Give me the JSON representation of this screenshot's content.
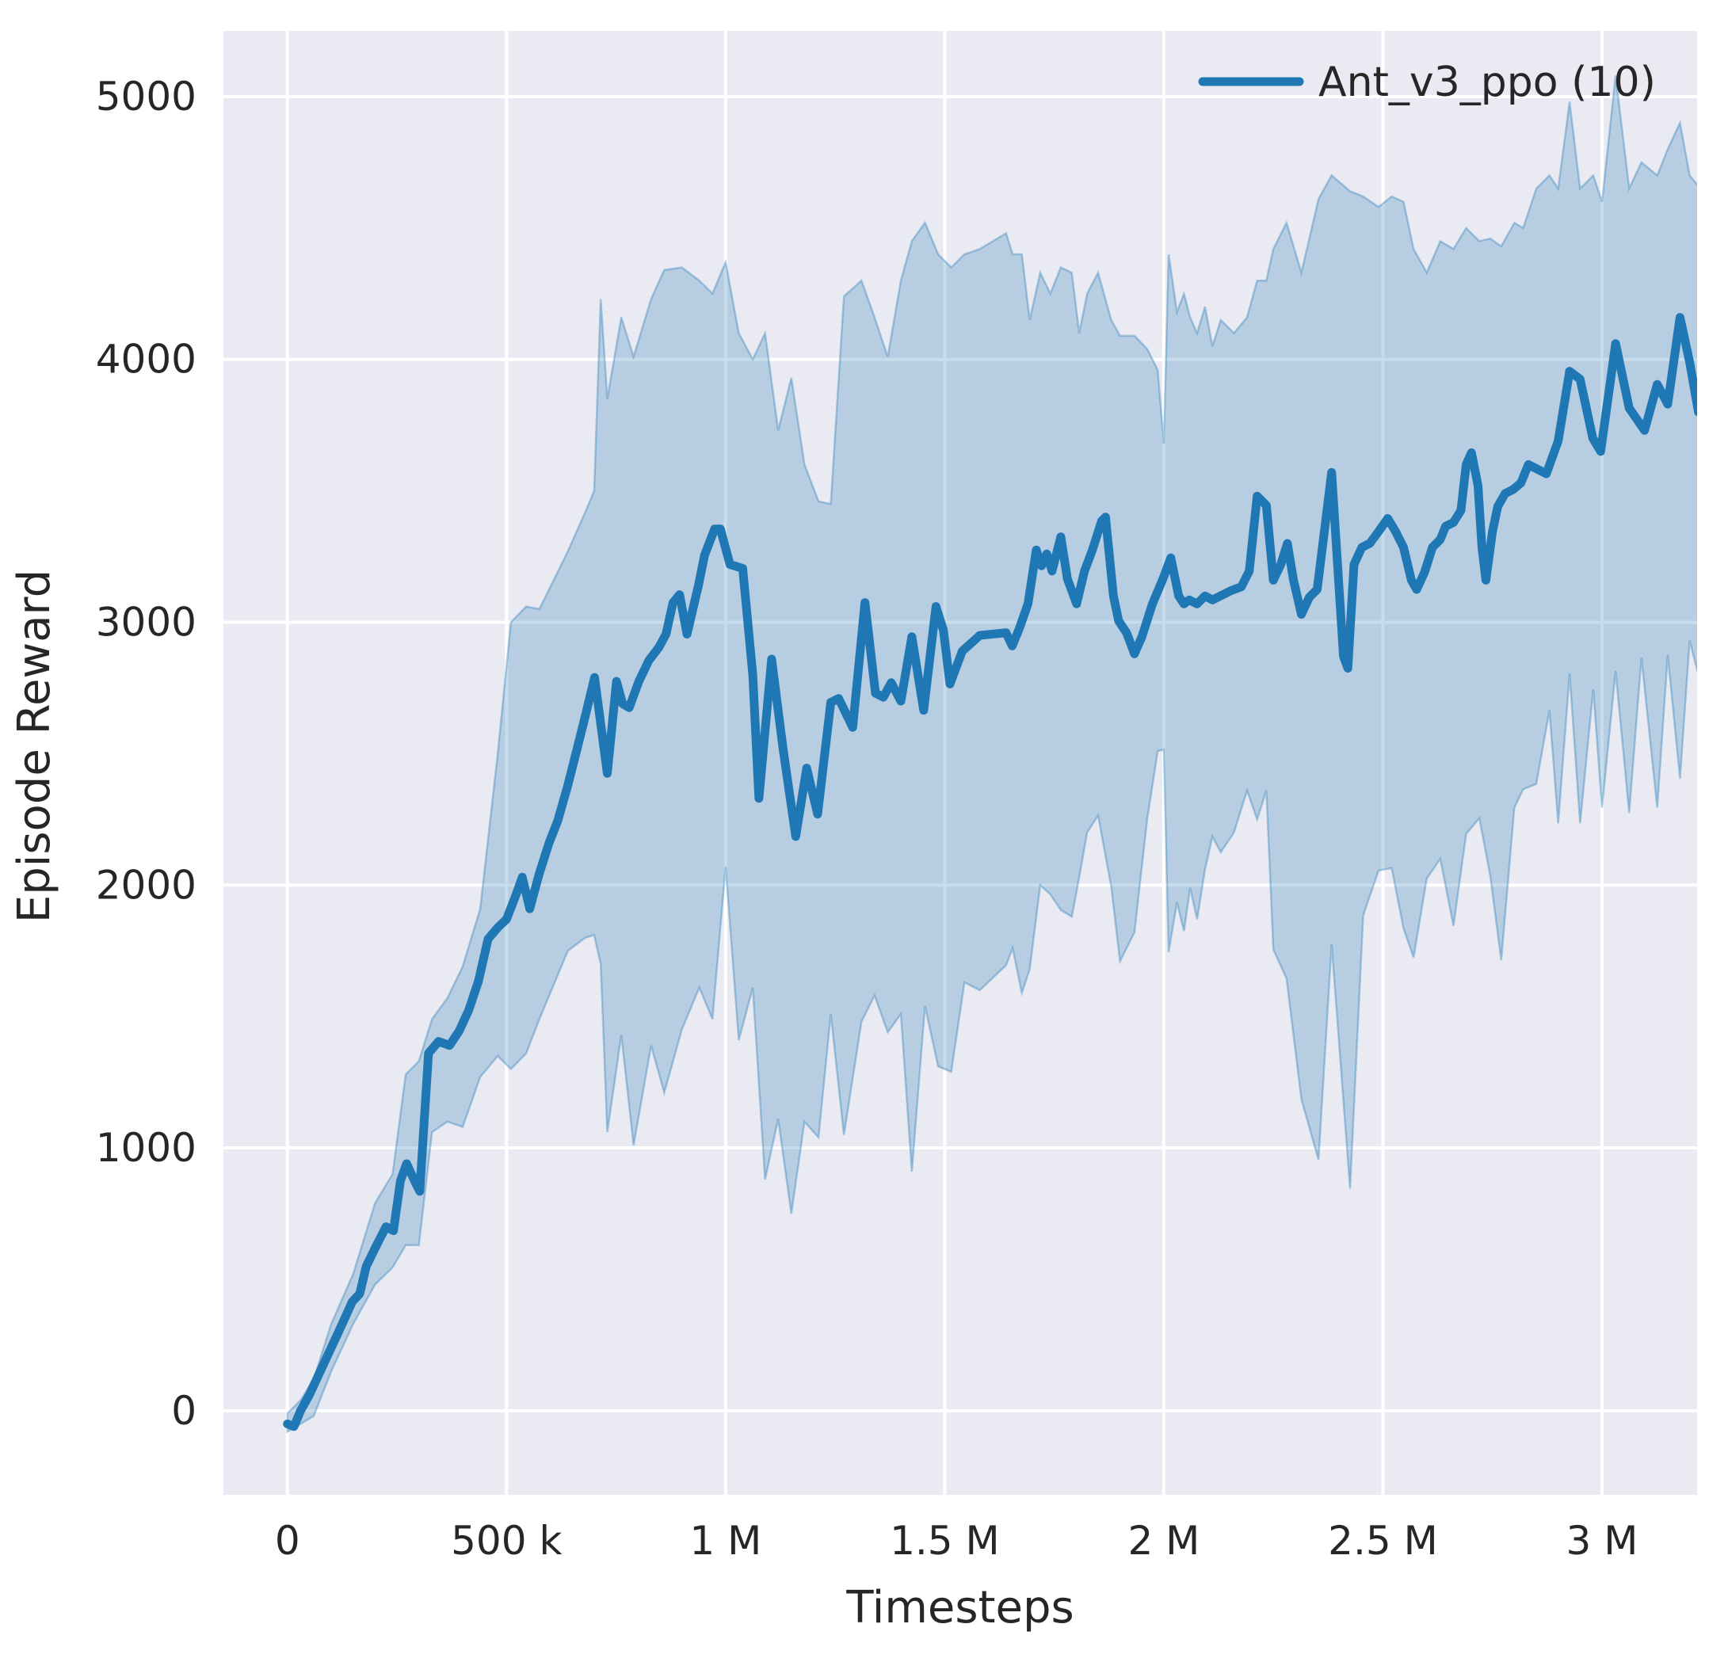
{
  "chart_data": {
    "type": "line",
    "title": "",
    "xlabel": "Timesteps",
    "ylabel": "Episode Reward",
    "grid": true,
    "legend_position": "upper right",
    "legend": [
      {
        "label": "Ant_v3_ppo (10)",
        "color": "#1f77b4"
      }
    ],
    "colors": {
      "figure_background": "#ffffff",
      "axes_background": "#eaeaf2",
      "gridline": "#ffffff",
      "line": "#1f77b4",
      "band_fill": "#1f77b4",
      "band_opacity": 0.25,
      "text": "#262626"
    },
    "xlim": [
      -146000,
      3217000
    ],
    "ylim": [
      -320,
      5250
    ],
    "x_ticks": [
      {
        "value": 0,
        "label": "0"
      },
      {
        "value": 500000,
        "label": "500 k"
      },
      {
        "value": 1000000,
        "label": "1 M"
      },
      {
        "value": 1500000,
        "label": "1.5 M"
      },
      {
        "value": 2000000,
        "label": "2 M"
      },
      {
        "value": 2500000,
        "label": "2.5 M"
      },
      {
        "value": 3000000,
        "label": "3 M"
      }
    ],
    "y_ticks": [
      {
        "value": 0,
        "label": "0"
      },
      {
        "value": 1000,
        "label": "1000"
      },
      {
        "value": 2000,
        "label": "2000"
      },
      {
        "value": 3000,
        "label": "3000"
      },
      {
        "value": 4000,
        "label": "4000"
      },
      {
        "value": 5000,
        "label": "5000"
      }
    ],
    "series": [
      {
        "name": "Ant_v3_ppo (10)",
        "color": "#1f77b4",
        "linewidth": 11,
        "points": [
          [
            0,
            -50
          ],
          [
            15000,
            -60
          ],
          [
            30000,
            0
          ],
          [
            50000,
            60
          ],
          [
            75000,
            150
          ],
          [
            100000,
            240
          ],
          [
            125000,
            330
          ],
          [
            148000,
            415
          ],
          [
            165000,
            445
          ],
          [
            180000,
            550
          ],
          [
            205000,
            635
          ],
          [
            225000,
            700
          ],
          [
            242000,
            685
          ],
          [
            258000,
            875
          ],
          [
            272000,
            940
          ],
          [
            290000,
            875
          ],
          [
            302000,
            835
          ],
          [
            322000,
            1360
          ],
          [
            345000,
            1405
          ],
          [
            370000,
            1390
          ],
          [
            392000,
            1445
          ],
          [
            414000,
            1525
          ],
          [
            436000,
            1635
          ],
          [
            458000,
            1795
          ],
          [
            481000,
            1840
          ],
          [
            500000,
            1870
          ],
          [
            521000,
            1960
          ],
          [
            536000,
            2030
          ],
          [
            553000,
            1910
          ],
          [
            575000,
            2045
          ],
          [
            597000,
            2160
          ],
          [
            617000,
            2245
          ],
          [
            640000,
            2380
          ],
          [
            662000,
            2525
          ],
          [
            680000,
            2645
          ],
          [
            701000,
            2790
          ],
          [
            730000,
            2425
          ],
          [
            751000,
            2775
          ],
          [
            765000,
            2690
          ],
          [
            780000,
            2675
          ],
          [
            802000,
            2775
          ],
          [
            825000,
            2855
          ],
          [
            848000,
            2905
          ],
          [
            864000,
            2955
          ],
          [
            880000,
            3075
          ],
          [
            895000,
            3105
          ],
          [
            912000,
            2955
          ],
          [
            938000,
            3140
          ],
          [
            952000,
            3255
          ],
          [
            975000,
            3355
          ],
          [
            988000,
            3355
          ],
          [
            1010000,
            3220
          ],
          [
            1039000,
            3205
          ],
          [
            1062000,
            2800
          ],
          [
            1076000,
            2330
          ],
          [
            1105000,
            2860
          ],
          [
            1131000,
            2520
          ],
          [
            1160000,
            2185
          ],
          [
            1185000,
            2445
          ],
          [
            1210000,
            2270
          ],
          [
            1240000,
            2695
          ],
          [
            1258000,
            2710
          ],
          [
            1290000,
            2600
          ],
          [
            1318000,
            3075
          ],
          [
            1342000,
            2730
          ],
          [
            1360000,
            2715
          ],
          [
            1378000,
            2770
          ],
          [
            1400000,
            2700
          ],
          [
            1425000,
            2945
          ],
          [
            1452000,
            2665
          ],
          [
            1480000,
            3060
          ],
          [
            1497000,
            2970
          ],
          [
            1512000,
            2765
          ],
          [
            1540000,
            2890
          ],
          [
            1580000,
            2950
          ],
          [
            1640000,
            2960
          ],
          [
            1654000,
            2910
          ],
          [
            1670000,
            2975
          ],
          [
            1690000,
            3070
          ],
          [
            1709000,
            3275
          ],
          [
            1721000,
            3215
          ],
          [
            1733000,
            3260
          ],
          [
            1745000,
            3195
          ],
          [
            1765000,
            3325
          ],
          [
            1780000,
            3165
          ],
          [
            1801000,
            3070
          ],
          [
            1819000,
            3195
          ],
          [
            1837000,
            3275
          ],
          [
            1858000,
            3385
          ],
          [
            1867000,
            3400
          ],
          [
            1885000,
            3100
          ],
          [
            1897000,
            3005
          ],
          [
            1915000,
            2960
          ],
          [
            1933000,
            2880
          ],
          [
            1950000,
            2945
          ],
          [
            1974000,
            3070
          ],
          [
            1998000,
            3165
          ],
          [
            2016000,
            3245
          ],
          [
            2034000,
            3100
          ],
          [
            2046000,
            3070
          ],
          [
            2058000,
            3085
          ],
          [
            2076000,
            3070
          ],
          [
            2094000,
            3100
          ],
          [
            2111000,
            3085
          ],
          [
            2129000,
            3100
          ],
          [
            2153000,
            3120
          ],
          [
            2177000,
            3135
          ],
          [
            2195000,
            3195
          ],
          [
            2213000,
            3480
          ],
          [
            2234000,
            3445
          ],
          [
            2250000,
            3160
          ],
          [
            2267000,
            3220
          ],
          [
            2282000,
            3300
          ],
          [
            2296000,
            3160
          ],
          [
            2314000,
            3030
          ],
          [
            2332000,
            3095
          ],
          [
            2350000,
            3125
          ],
          [
            2383000,
            3570
          ],
          [
            2410000,
            2870
          ],
          [
            2420000,
            2825
          ],
          [
            2434000,
            3220
          ],
          [
            2452000,
            3285
          ],
          [
            2470000,
            3300
          ],
          [
            2490000,
            3345
          ],
          [
            2511000,
            3395
          ],
          [
            2529000,
            3345
          ],
          [
            2547000,
            3285
          ],
          [
            2565000,
            3160
          ],
          [
            2577000,
            3125
          ],
          [
            2595000,
            3190
          ],
          [
            2613000,
            3285
          ],
          [
            2631000,
            3315
          ],
          [
            2643000,
            3365
          ],
          [
            2661000,
            3380
          ],
          [
            2678000,
            3425
          ],
          [
            2690000,
            3600
          ],
          [
            2702000,
            3645
          ],
          [
            2717000,
            3520
          ],
          [
            2726000,
            3285
          ],
          [
            2735000,
            3160
          ],
          [
            2750000,
            3345
          ],
          [
            2762000,
            3440
          ],
          [
            2779000,
            3490
          ],
          [
            2797000,
            3505
          ],
          [
            2815000,
            3530
          ],
          [
            2832000,
            3600
          ],
          [
            2873000,
            3565
          ],
          [
            2900000,
            3690
          ],
          [
            2926000,
            3955
          ],
          [
            2950000,
            3925
          ],
          [
            2979000,
            3700
          ],
          [
            2997000,
            3650
          ],
          [
            3031000,
            4060
          ],
          [
            3062000,
            3815
          ],
          [
            3097000,
            3730
          ],
          [
            3126000,
            3905
          ],
          [
            3150000,
            3830
          ],
          [
            3178000,
            4160
          ],
          [
            3200000,
            3990
          ],
          [
            3220000,
            3800
          ]
        ]
      }
    ],
    "band": {
      "name": "std-band",
      "color": "#1f77b4",
      "opacity": 0.25,
      "points": [
        [
          0,
          -80,
          -10
        ],
        [
          30000,
          -50,
          40
        ],
        [
          60000,
          -20,
          120
        ],
        [
          100000,
          150,
          330
        ],
        [
          150000,
          330,
          520
        ],
        [
          200000,
          480,
          790
        ],
        [
          240000,
          545,
          900
        ],
        [
          270000,
          630,
          1280
        ],
        [
          300000,
          630,
          1330
        ],
        [
          330000,
          1060,
          1490
        ],
        [
          365000,
          1100,
          1570
        ],
        [
          400000,
          1080,
          1690
        ],
        [
          440000,
          1270,
          1910
        ],
        [
          480000,
          1350,
          2500
        ],
        [
          510000,
          1300,
          3000
        ],
        [
          545000,
          1360,
          3060
        ],
        [
          575000,
          1490,
          3050
        ],
        [
          640000,
          1750,
          3270
        ],
        [
          680000,
          1800,
          3420
        ],
        [
          700000,
          1810,
          3500
        ],
        [
          715000,
          1700,
          4230
        ],
        [
          730000,
          1060,
          3850
        ],
        [
          762000,
          1430,
          4160
        ],
        [
          790000,
          1010,
          4010
        ],
        [
          830000,
          1390,
          4230
        ],
        [
          860000,
          1210,
          4340
        ],
        [
          900000,
          1450,
          4350
        ],
        [
          940000,
          1610,
          4300
        ],
        [
          970000,
          1490,
          4250
        ],
        [
          1000000,
          2070,
          4370
        ],
        [
          1030000,
          1410,
          4100
        ],
        [
          1062000,
          1610,
          4000
        ],
        [
          1090000,
          880,
          4100
        ],
        [
          1120000,
          1110,
          3730
        ],
        [
          1150000,
          750,
          3930
        ],
        [
          1180000,
          1100,
          3600
        ],
        [
          1212000,
          1040,
          3460
        ],
        [
          1240000,
          1510,
          3450
        ],
        [
          1270000,
          1050,
          4240
        ],
        [
          1310000,
          1480,
          4300
        ],
        [
          1340000,
          1580,
          4160
        ],
        [
          1370000,
          1440,
          4010
        ],
        [
          1400000,
          1510,
          4300
        ],
        [
          1425000,
          910,
          4450
        ],
        [
          1455000,
          1540,
          4520
        ],
        [
          1485000,
          1310,
          4400
        ],
        [
          1515000,
          1290,
          4350
        ],
        [
          1545000,
          1630,
          4400
        ],
        [
          1580000,
          1600,
          4420
        ],
        [
          1640000,
          1695,
          4480
        ],
        [
          1655000,
          1760,
          4400
        ],
        [
          1676000,
          1590,
          4400
        ],
        [
          1694000,
          1680,
          4150
        ],
        [
          1718000,
          2000,
          4330
        ],
        [
          1741000,
          1965,
          4250
        ],
        [
          1765000,
          1905,
          4350
        ],
        [
          1790000,
          1880,
          4330
        ],
        [
          1807000,
          2030,
          4100
        ],
        [
          1825000,
          2200,
          4250
        ],
        [
          1850000,
          2265,
          4330
        ],
        [
          1880000,
          1995,
          4150
        ],
        [
          1900000,
          1710,
          4090
        ],
        [
          1933000,
          1820,
          4090
        ],
        [
          1962000,
          2250,
          4040
        ],
        [
          1986000,
          2510,
          3960
        ],
        [
          2000000,
          2515,
          3680
        ],
        [
          2011000,
          1745,
          4400
        ],
        [
          2030000,
          1935,
          4180
        ],
        [
          2046000,
          1825,
          4250
        ],
        [
          2060000,
          1990,
          4160
        ],
        [
          2076000,
          1870,
          4100
        ],
        [
          2094000,
          2060,
          4200
        ],
        [
          2111000,
          2185,
          4050
        ],
        [
          2130000,
          2125,
          4150
        ],
        [
          2160000,
          2200,
          4100
        ],
        [
          2190000,
          2360,
          4160
        ],
        [
          2213000,
          2250,
          4300
        ],
        [
          2234000,
          2360,
          4300
        ],
        [
          2250000,
          1755,
          4420
        ],
        [
          2280000,
          1645,
          4520
        ],
        [
          2314000,
          1185,
          4330
        ],
        [
          2353000,
          955,
          4610
        ],
        [
          2383000,
          1775,
          4700
        ],
        [
          2425000,
          845,
          4640
        ],
        [
          2455000,
          1885,
          4620
        ],
        [
          2490000,
          2055,
          4580
        ],
        [
          2520000,
          2065,
          4620
        ],
        [
          2547000,
          1835,
          4600
        ],
        [
          2570000,
          1725,
          4420
        ],
        [
          2600000,
          2025,
          4330
        ],
        [
          2631000,
          2100,
          4450
        ],
        [
          2661000,
          1845,
          4420
        ],
        [
          2690000,
          2195,
          4500
        ],
        [
          2720000,
          2255,
          4450
        ],
        [
          2745000,
          2035,
          4460
        ],
        [
          2770000,
          1715,
          4430
        ],
        [
          2800000,
          2295,
          4520
        ],
        [
          2820000,
          2365,
          4500
        ],
        [
          2850000,
          2385,
          4650
        ],
        [
          2880000,
          2665,
          4700
        ],
        [
          2900000,
          2235,
          4650
        ],
        [
          2926000,
          2805,
          4980
        ],
        [
          2950000,
          2235,
          4650
        ],
        [
          2980000,
          2745,
          4700
        ],
        [
          3000000,
          2295,
          4600
        ],
        [
          3031000,
          2815,
          5080
        ],
        [
          3062000,
          2275,
          4650
        ],
        [
          3090000,
          2865,
          4750
        ],
        [
          3126000,
          2295,
          4700
        ],
        [
          3150000,
          2875,
          4800
        ],
        [
          3178000,
          2405,
          4900
        ],
        [
          3200000,
          2930,
          4700
        ],
        [
          3220000,
          2800,
          4660
        ]
      ]
    }
  }
}
